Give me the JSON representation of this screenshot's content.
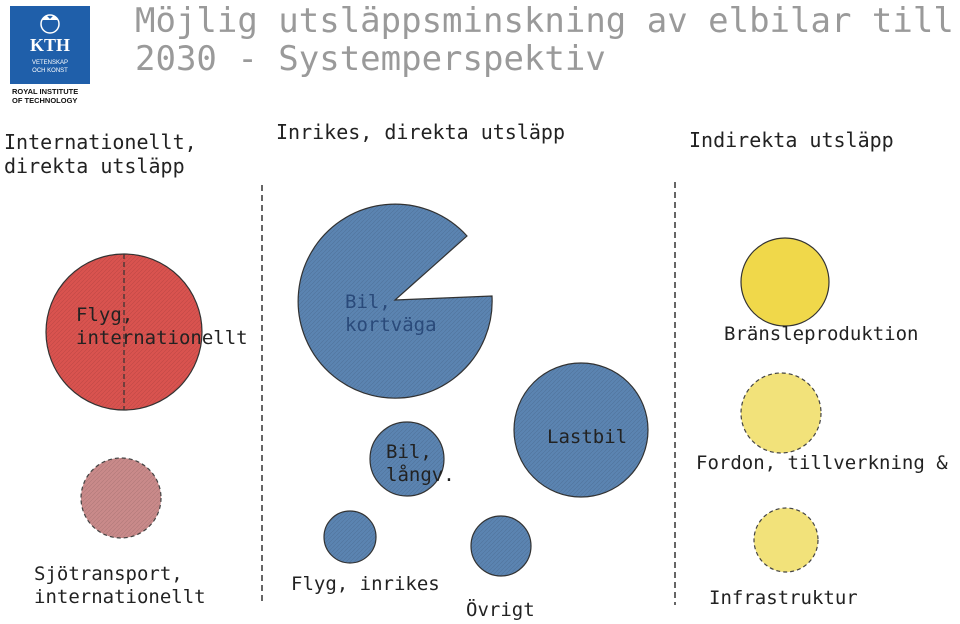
{
  "title_line1": "Möjlig utsläppsminskning av elbilar till",
  "title_line2": "2030 - Systemperspektiv",
  "logo": {
    "text": "KTH",
    "sub1": "VETENSKAP",
    "sub2": "OCH KONST",
    "caption1": "ROYAL INSTITUTE",
    "caption2": "OF TECHNOLOGY",
    "color": "#1f5faa"
  },
  "columns": {
    "international": {
      "line1": "Internationellt,",
      "line2": "direkta utsläpp"
    },
    "domestic": "Inrikes, direkta utsläpp",
    "indirect": "Indirekta utsläpp"
  },
  "bubbles": {
    "flyg_int": {
      "line1": "Flyg,",
      "line2": "internationellt",
      "color": "#d9534f"
    },
    "sjo_int": {
      "line1": "Sjötransport,",
      "line2": "internationellt",
      "color": "#c98a8a"
    },
    "bil_kort": {
      "line1": "Bil,",
      "line2": "kortväga",
      "color": "#5b84b1"
    },
    "bil_lang": {
      "line1": "Bil,",
      "line2": "långv.",
      "color": "#5b84b1"
    },
    "lastbil": {
      "label": "Lastbil",
      "color": "#5b84b1"
    },
    "flyg_inr": {
      "label": "Flyg, inrikes",
      "color": "#5b84b1"
    },
    "ovrigt": {
      "label": "Övrigt",
      "color": "#5b84b1"
    },
    "bransle": {
      "label": "Bränsleproduktion",
      "color": "#f0d84a"
    },
    "fordon": {
      "label": "Fordon, tillverkning & uh",
      "color": "#f2e27a"
    },
    "infra": {
      "label": "Infrastruktur",
      "color": "#f2e27a"
    }
  }
}
